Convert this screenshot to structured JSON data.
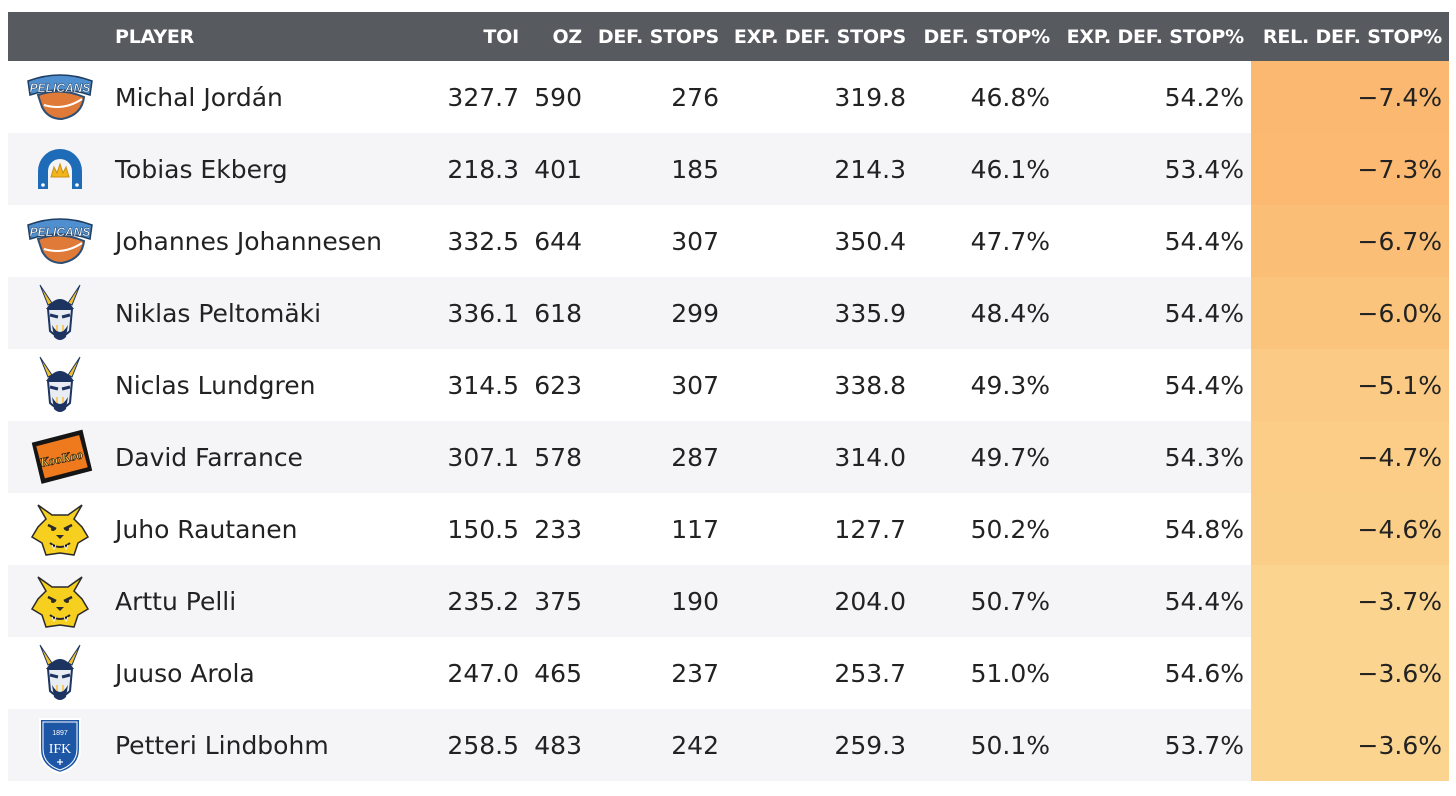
{
  "table": {
    "headers": {
      "player": "PLAYER",
      "toi": "TOI",
      "oz": "OZ",
      "def_stops": "DEF. STOPS",
      "exp_def_stops": "EXP. DEF. STOPS",
      "def_stop_pct": "DEF. STOP%",
      "exp_def_stop_pct": "EXP. DEF. STOP%",
      "rel_def_stop_pct": "REL. DEF. STOP%"
    },
    "rows": [
      {
        "team_logo": "pelicans-logo",
        "player": "Michal Jordán",
        "toi": "327.7",
        "oz": "590",
        "def_stops": "276",
        "exp_def_stops": "319.8",
        "def_stop_pct": "46.8%",
        "exp_def_stop_pct": "54.2%",
        "rel_def_stop_pct": "−7.4%",
        "rel_color": "#fbb870"
      },
      {
        "team_logo": "horseshoe-crown-logo",
        "player": "Tobias Ekberg",
        "toi": "218.3",
        "oz": "401",
        "def_stops": "185",
        "exp_def_stops": "214.3",
        "def_stop_pct": "46.1%",
        "exp_def_stop_pct": "53.4%",
        "rel_def_stop_pct": "−7.3%",
        "rel_color": "#fbb972"
      },
      {
        "team_logo": "pelicans-logo",
        "player": "Johannes Johannesen",
        "toi": "332.5",
        "oz": "644",
        "def_stops": "307",
        "exp_def_stops": "350.4",
        "def_stop_pct": "47.7%",
        "exp_def_stop_pct": "54.4%",
        "rel_def_stop_pct": "−6.7%",
        "rel_color": "#fbbe77"
      },
      {
        "team_logo": "viking-logo",
        "player": "Niklas Peltomäki",
        "toi": "336.1",
        "oz": "618",
        "def_stops": "299",
        "exp_def_stops": "335.9",
        "def_stop_pct": "48.4%",
        "exp_def_stop_pct": "54.4%",
        "rel_def_stop_pct": "−6.0%",
        "rel_color": "#fbc47d"
      },
      {
        "team_logo": "viking-logo",
        "player": "Niclas Lundgren",
        "toi": "314.5",
        "oz": "623",
        "def_stops": "307",
        "exp_def_stops": "338.8",
        "def_stop_pct": "49.3%",
        "exp_def_stop_pct": "54.4%",
        "rel_def_stop_pct": "−5.1%",
        "rel_color": "#fbca84"
      },
      {
        "team_logo": "kookoo-logo",
        "player": "David Farrance",
        "toi": "307.1",
        "oz": "578",
        "def_stops": "287",
        "exp_def_stops": "314.0",
        "def_stop_pct": "49.7%",
        "exp_def_stop_pct": "54.3%",
        "rel_def_stop_pct": "−4.7%",
        "rel_color": "#fbcd87"
      },
      {
        "team_logo": "lynx-logo",
        "player": "Juho Rautanen",
        "toi": "150.5",
        "oz": "233",
        "def_stops": "117",
        "exp_def_stops": "127.7",
        "def_stop_pct": "50.2%",
        "exp_def_stop_pct": "54.8%",
        "rel_def_stop_pct": "−4.6%",
        "rel_color": "#fbce88"
      },
      {
        "team_logo": "lynx-logo",
        "player": "Arttu Pelli",
        "toi": "235.2",
        "oz": "375",
        "def_stops": "190",
        "exp_def_stops": "204.0",
        "def_stop_pct": "50.7%",
        "exp_def_stop_pct": "54.4%",
        "rel_def_stop_pct": "−3.7%",
        "rel_color": "#fbd48f"
      },
      {
        "team_logo": "viking-logo",
        "player": "Juuso Arola",
        "toi": "247.0",
        "oz": "465",
        "def_stops": "237",
        "exp_def_stops": "253.7",
        "def_stop_pct": "51.0%",
        "exp_def_stop_pct": "54.6%",
        "rel_def_stop_pct": "−3.6%",
        "rel_color": "#fbd590"
      },
      {
        "team_logo": "ifk-logo",
        "player": "Petteri Lindbohm",
        "toi": "258.5",
        "oz": "483",
        "def_stops": "242",
        "exp_def_stops": "259.3",
        "def_stop_pct": "50.1%",
        "exp_def_stop_pct": "53.7%",
        "rel_def_stop_pct": "−3.6%",
        "rel_color": "#fbd590"
      }
    ]
  },
  "logo_text": {
    "pelicans": "PELICANS",
    "kookoo": "KooKoo",
    "ifk_year": "1897",
    "ifk_letters": "IFK"
  }
}
